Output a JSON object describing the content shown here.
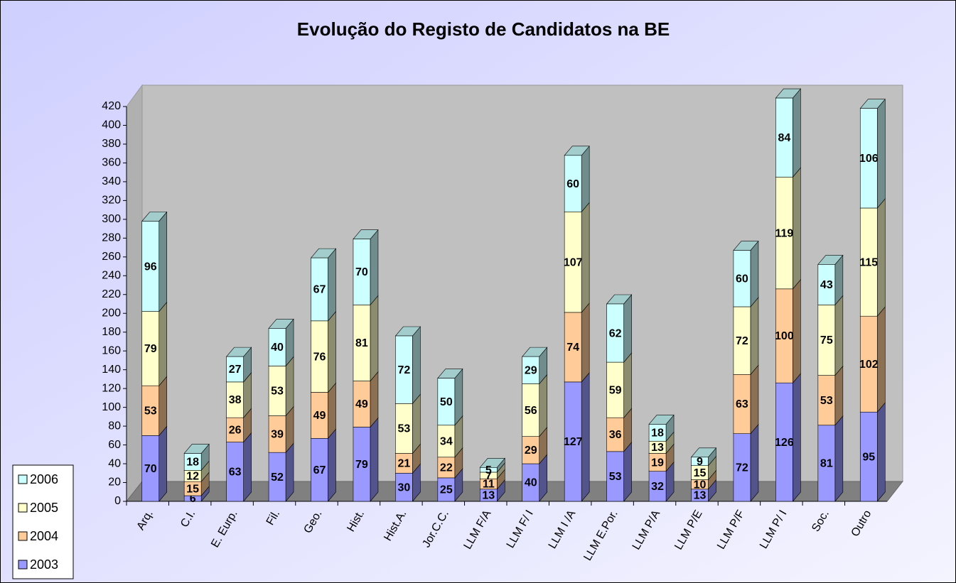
{
  "chart_data": {
    "type": "bar",
    "stacked": true,
    "three_d": true,
    "title": "Evolução do Registo de Candidatos na BE",
    "categories": [
      "Arq.",
      "C.I.",
      "E. Eurp.",
      "Fil.",
      "Geo.",
      "Hist.",
      "Hist.A.",
      "Jor.C.C.",
      "LLM F/A",
      "LLM F/ I",
      "LLM I /A",
      "LLM E.Por.",
      "LLM P/A",
      "LLM P/E",
      "LLM P/F",
      "LLM P/ I",
      "Soc.",
      "Outro"
    ],
    "series": [
      {
        "name": "2003",
        "color": "#9999ff",
        "values": [
          70,
          6,
          63,
          52,
          67,
          79,
          30,
          25,
          13,
          40,
          127,
          53,
          32,
          13,
          72,
          126,
          81,
          95
        ]
      },
      {
        "name": "2004",
        "color": "#ffcc99",
        "values": [
          53,
          15,
          26,
          39,
          49,
          49,
          21,
          22,
          11,
          29,
          74,
          36,
          19,
          10,
          63,
          100,
          53,
          102
        ]
      },
      {
        "name": "2005",
        "color": "#ffffcc",
        "values": [
          79,
          12,
          38,
          53,
          76,
          81,
          53,
          34,
          7,
          56,
          107,
          59,
          13,
          15,
          72,
          119,
          75,
          115
        ]
      },
      {
        "name": "2006",
        "color": "#ccffff",
        "values": [
          96,
          18,
          27,
          40,
          67,
          70,
          72,
          50,
          5,
          29,
          60,
          62,
          18,
          9,
          60,
          84,
          43,
          106
        ]
      }
    ],
    "ylim": [
      0,
      420
    ],
    "yticks": [
      0,
      20,
      40,
      60,
      80,
      100,
      120,
      140,
      160,
      180,
      200,
      220,
      240,
      260,
      280,
      300,
      320,
      340,
      360,
      380,
      400,
      420
    ],
    "grid": false,
    "legend": "bottom-left"
  }
}
